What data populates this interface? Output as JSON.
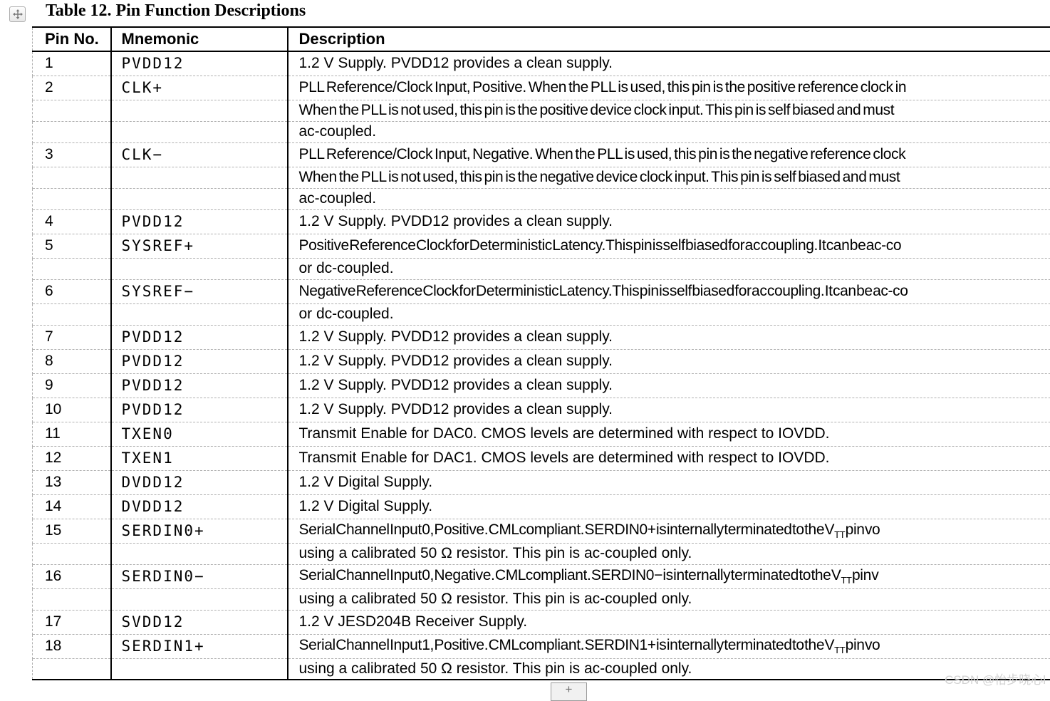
{
  "title": "Table 12. Pin Function Descriptions",
  "icons": {
    "move_table_icon": "four-direction-arrows"
  },
  "watermark": "CSDN @怡步晓心l",
  "plus_button_label": "+",
  "colors": {
    "text": "#000000",
    "grid_dashed": "#b0b0b0",
    "grid_solid": "#000000",
    "watermark": "#d2d2d2"
  },
  "table": {
    "headers": {
      "pin": "Pin No.",
      "mnemonic": "Mnemonic",
      "description": "Description"
    },
    "rows": [
      {
        "pin": "1",
        "mnemonic": "PVDD12",
        "desc": "1.2 V Supply. PVDD12 provides a clean supply."
      },
      {
        "pin": "2",
        "mnemonic": "CLK+",
        "desc": "PLL Reference/Clock Input, Positive. When the PLL is used, this pin is the positive reference clock in"
      },
      {
        "pin": "",
        "mnemonic": "",
        "desc": "When the PLL is not used, this pin is the positive device clock input. This pin is self biased and must"
      },
      {
        "pin": "",
        "mnemonic": "",
        "desc": "ac-coupled."
      },
      {
        "pin": "3",
        "mnemonic": "CLK−",
        "desc": "PLL Reference/Clock Input, Negative. When the PLL is used, this pin is the negative reference clock"
      },
      {
        "pin": "",
        "mnemonic": "",
        "desc": "When the PLL is not used, this pin is the negative device clock input. This pin is self biased and must"
      },
      {
        "pin": "",
        "mnemonic": "",
        "desc": "ac-coupled."
      },
      {
        "pin": "4",
        "mnemonic": "PVDD12",
        "desc": "1.2 V Supply. PVDD12 provides a clean supply."
      },
      {
        "pin": "5",
        "mnemonic": "SYSREF+",
        "desc": "Positive Reference Clock for Deterministic Latency. This pin is self biased for ac coupling. It can be ac-co"
      },
      {
        "pin": "",
        "mnemonic": "",
        "desc": "or dc-coupled."
      },
      {
        "pin": "6",
        "mnemonic": "SYSREF−",
        "desc": "Negative Reference Clock for Deterministic Latency. This pin is self biased for ac coupling. It can be ac-co"
      },
      {
        "pin": "",
        "mnemonic": "",
        "desc": "or dc-coupled."
      },
      {
        "pin": "7",
        "mnemonic": "PVDD12",
        "desc": "1.2 V Supply. PVDD12 provides a clean supply."
      },
      {
        "pin": "8",
        "mnemonic": "PVDD12",
        "desc": "1.2 V Supply. PVDD12 provides a clean supply."
      },
      {
        "pin": "9",
        "mnemonic": "PVDD12",
        "desc": "1.2 V Supply. PVDD12 provides a clean supply."
      },
      {
        "pin": "10",
        "mnemonic": "PVDD12",
        "desc": "1.2 V Supply. PVDD12 provides a clean supply."
      },
      {
        "pin": "11",
        "mnemonic": "TXEN0",
        "desc": "Transmit Enable for DAC0. CMOS levels are determined with respect to IOVDD."
      },
      {
        "pin": "12",
        "mnemonic": "TXEN1",
        "desc": "Transmit Enable for DAC1. CMOS levels are determined with respect to IOVDD."
      },
      {
        "pin": "13",
        "mnemonic": "DVDD12",
        "desc": "1.2 V Digital Supply."
      },
      {
        "pin": "14",
        "mnemonic": "DVDD12",
        "desc": "1.2 V Digital Supply."
      },
      {
        "pin": "15",
        "mnemonic": "SERDIN0+",
        "desc": "Serial Channel Input 0, Positive. CML compliant. SERDIN0+ is internally terminated to the V_TT pin vo"
      },
      {
        "pin": "",
        "mnemonic": "",
        "desc": "using a calibrated 50 Ω resistor. This pin is ac-coupled only."
      },
      {
        "pin": "16",
        "mnemonic": "SERDIN0−",
        "desc": "Serial Channel Input 0, Negative. CML compliant. SERDIN0− is internally terminated to the V_TT pin v"
      },
      {
        "pin": "",
        "mnemonic": "",
        "desc": "using a calibrated 50 Ω resistor. This pin is ac-coupled only."
      },
      {
        "pin": "17",
        "mnemonic": "SVDD12",
        "desc": "1.2 V JESD204B Receiver Supply."
      },
      {
        "pin": "18",
        "mnemonic": "SERDIN1+",
        "desc": "Serial Channel Input 1, Positive. CML compliant. SERDIN1+ is internally terminated to the V_TT pin vo"
      },
      {
        "pin": "",
        "mnemonic": "",
        "desc": "using a calibrated 50 Ω resistor. This pin is ac-coupled only."
      }
    ]
  }
}
